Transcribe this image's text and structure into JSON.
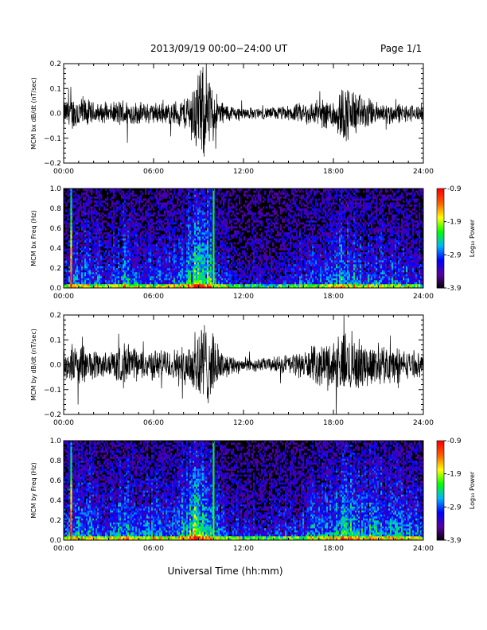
{
  "header": {
    "title": "2013/09/19  00:00−24:00 UT",
    "page": "Page 1/1"
  },
  "xlabel": "Universal Time (hh:mm)",
  "colors": {
    "trace": "#000000",
    "spectrogram_bg": "#000000"
  },
  "colorbar": {
    "label": "Log₁₀ Power",
    "ticks": [
      "-0.9",
      "-1.9",
      "-2.9",
      "-3.9"
    ],
    "range": [
      -3.9,
      -0.9
    ],
    "colormap": [
      "#000000",
      "#5a00a0",
      "#0000ff",
      "#00b4ff",
      "#00ff00",
      "#ffff00",
      "#ff6000",
      "#ff0000"
    ]
  },
  "chart_data": [
    {
      "type": "line",
      "ylabel": "MCM bx dB/dt (nT/sec)",
      "xlim": [
        0,
        24
      ],
      "ylim": [
        -0.2,
        0.2
      ],
      "xticks": [
        "00:00",
        "06:00",
        "12:00",
        "18:00",
        "24:00"
      ],
      "yticks": [
        "0.2",
        "0.1",
        "0.0",
        "−0.1",
        "−0.2"
      ],
      "envelope": {
        "x": [
          0,
          1,
          2,
          3,
          4,
          5,
          6,
          7,
          8,
          8.5,
          9,
          9.5,
          10,
          10.5,
          11,
          12,
          13,
          14,
          15,
          16,
          17,
          18,
          18.5,
          19,
          19.5,
          20,
          21,
          22,
          23,
          24
        ],
        "amplitude": [
          0.06,
          0.09,
          0.05,
          0.04,
          0.07,
          0.05,
          0.05,
          0.05,
          0.07,
          0.12,
          0.22,
          0.2,
          0.12,
          0.06,
          0.04,
          0.03,
          0.025,
          0.03,
          0.035,
          0.05,
          0.06,
          0.08,
          0.12,
          0.14,
          0.1,
          0.08,
          0.05,
          0.05,
          0.04,
          0.04
        ]
      }
    },
    {
      "type": "heatmap",
      "ylabel": "MCM bx Freq (Hz)",
      "xlim": [
        0,
        24
      ],
      "ylim": [
        0,
        1
      ],
      "xticks": [
        "00:00",
        "06:00",
        "12:00",
        "18:00",
        "24:00"
      ],
      "yticks": [
        "1.0",
        "0.8",
        "0.6",
        "0.4",
        "0.2",
        "0.0"
      ],
      "activity": {
        "x": [
          0,
          1,
          2,
          3,
          4,
          5,
          6,
          7,
          8,
          8.5,
          9,
          9.5,
          10,
          10.5,
          11,
          12,
          13,
          14,
          15,
          16,
          17,
          18,
          18.5,
          19,
          19.5,
          20,
          21,
          22,
          23,
          24
        ],
        "level": [
          0.4,
          0.55,
          0.45,
          0.4,
          0.55,
          0.45,
          0.45,
          0.45,
          0.55,
          0.75,
          0.95,
          0.9,
          0.6,
          0.4,
          0.35,
          0.3,
          0.3,
          0.3,
          0.35,
          0.4,
          0.45,
          0.5,
          0.6,
          0.65,
          0.55,
          0.5,
          0.45,
          0.45,
          0.4,
          0.4
        ]
      },
      "spikes_hours": [
        0.5,
        10.0
      ]
    },
    {
      "type": "line",
      "ylabel": "MCM by dB/dt (nT/sec)",
      "xlim": [
        0,
        24
      ],
      "ylim": [
        -0.2,
        0.2
      ],
      "xticks": [
        "00:00",
        "06:00",
        "12:00",
        "18:00",
        "24:00"
      ],
      "yticks": [
        "0.2",
        "0.1",
        "0.0",
        "−0.1",
        "−0.2"
      ],
      "envelope": {
        "x": [
          0,
          1,
          2,
          3,
          4,
          5,
          6,
          7,
          8,
          8.5,
          9,
          9.5,
          10,
          10.5,
          11,
          12,
          13,
          14,
          15,
          16,
          17,
          18,
          18.5,
          19,
          19.5,
          20,
          21,
          22,
          23,
          24
        ],
        "amplitude": [
          0.07,
          0.1,
          0.07,
          0.06,
          0.1,
          0.07,
          0.07,
          0.07,
          0.08,
          0.13,
          0.22,
          0.2,
          0.13,
          0.07,
          0.05,
          0.035,
          0.03,
          0.035,
          0.05,
          0.06,
          0.09,
          0.12,
          0.14,
          0.15,
          0.12,
          0.1,
          0.09,
          0.09,
          0.06,
          0.05
        ]
      }
    },
    {
      "type": "heatmap",
      "ylabel": "MCM by Freq (Hz)",
      "xlim": [
        0,
        24
      ],
      "ylim": [
        0,
        1
      ],
      "xticks": [
        "00:00",
        "06:00",
        "12:00",
        "18:00",
        "24:00"
      ],
      "yticks": [
        "1.0",
        "0.8",
        "0.6",
        "0.4",
        "0.2",
        "0.0"
      ],
      "activity": {
        "x": [
          0,
          1,
          2,
          3,
          4,
          5,
          6,
          7,
          8,
          8.5,
          9,
          9.5,
          10,
          10.5,
          11,
          12,
          13,
          14,
          15,
          16,
          17,
          18,
          18.5,
          19,
          19.5,
          20,
          21,
          22,
          23,
          24
        ],
        "level": [
          0.45,
          0.6,
          0.5,
          0.45,
          0.6,
          0.5,
          0.5,
          0.5,
          0.6,
          0.8,
          0.95,
          0.9,
          0.65,
          0.45,
          0.4,
          0.35,
          0.35,
          0.35,
          0.4,
          0.45,
          0.55,
          0.6,
          0.65,
          0.7,
          0.65,
          0.6,
          0.6,
          0.6,
          0.5,
          0.45
        ]
      },
      "spikes_hours": [
        0.5,
        10.0
      ]
    }
  ]
}
